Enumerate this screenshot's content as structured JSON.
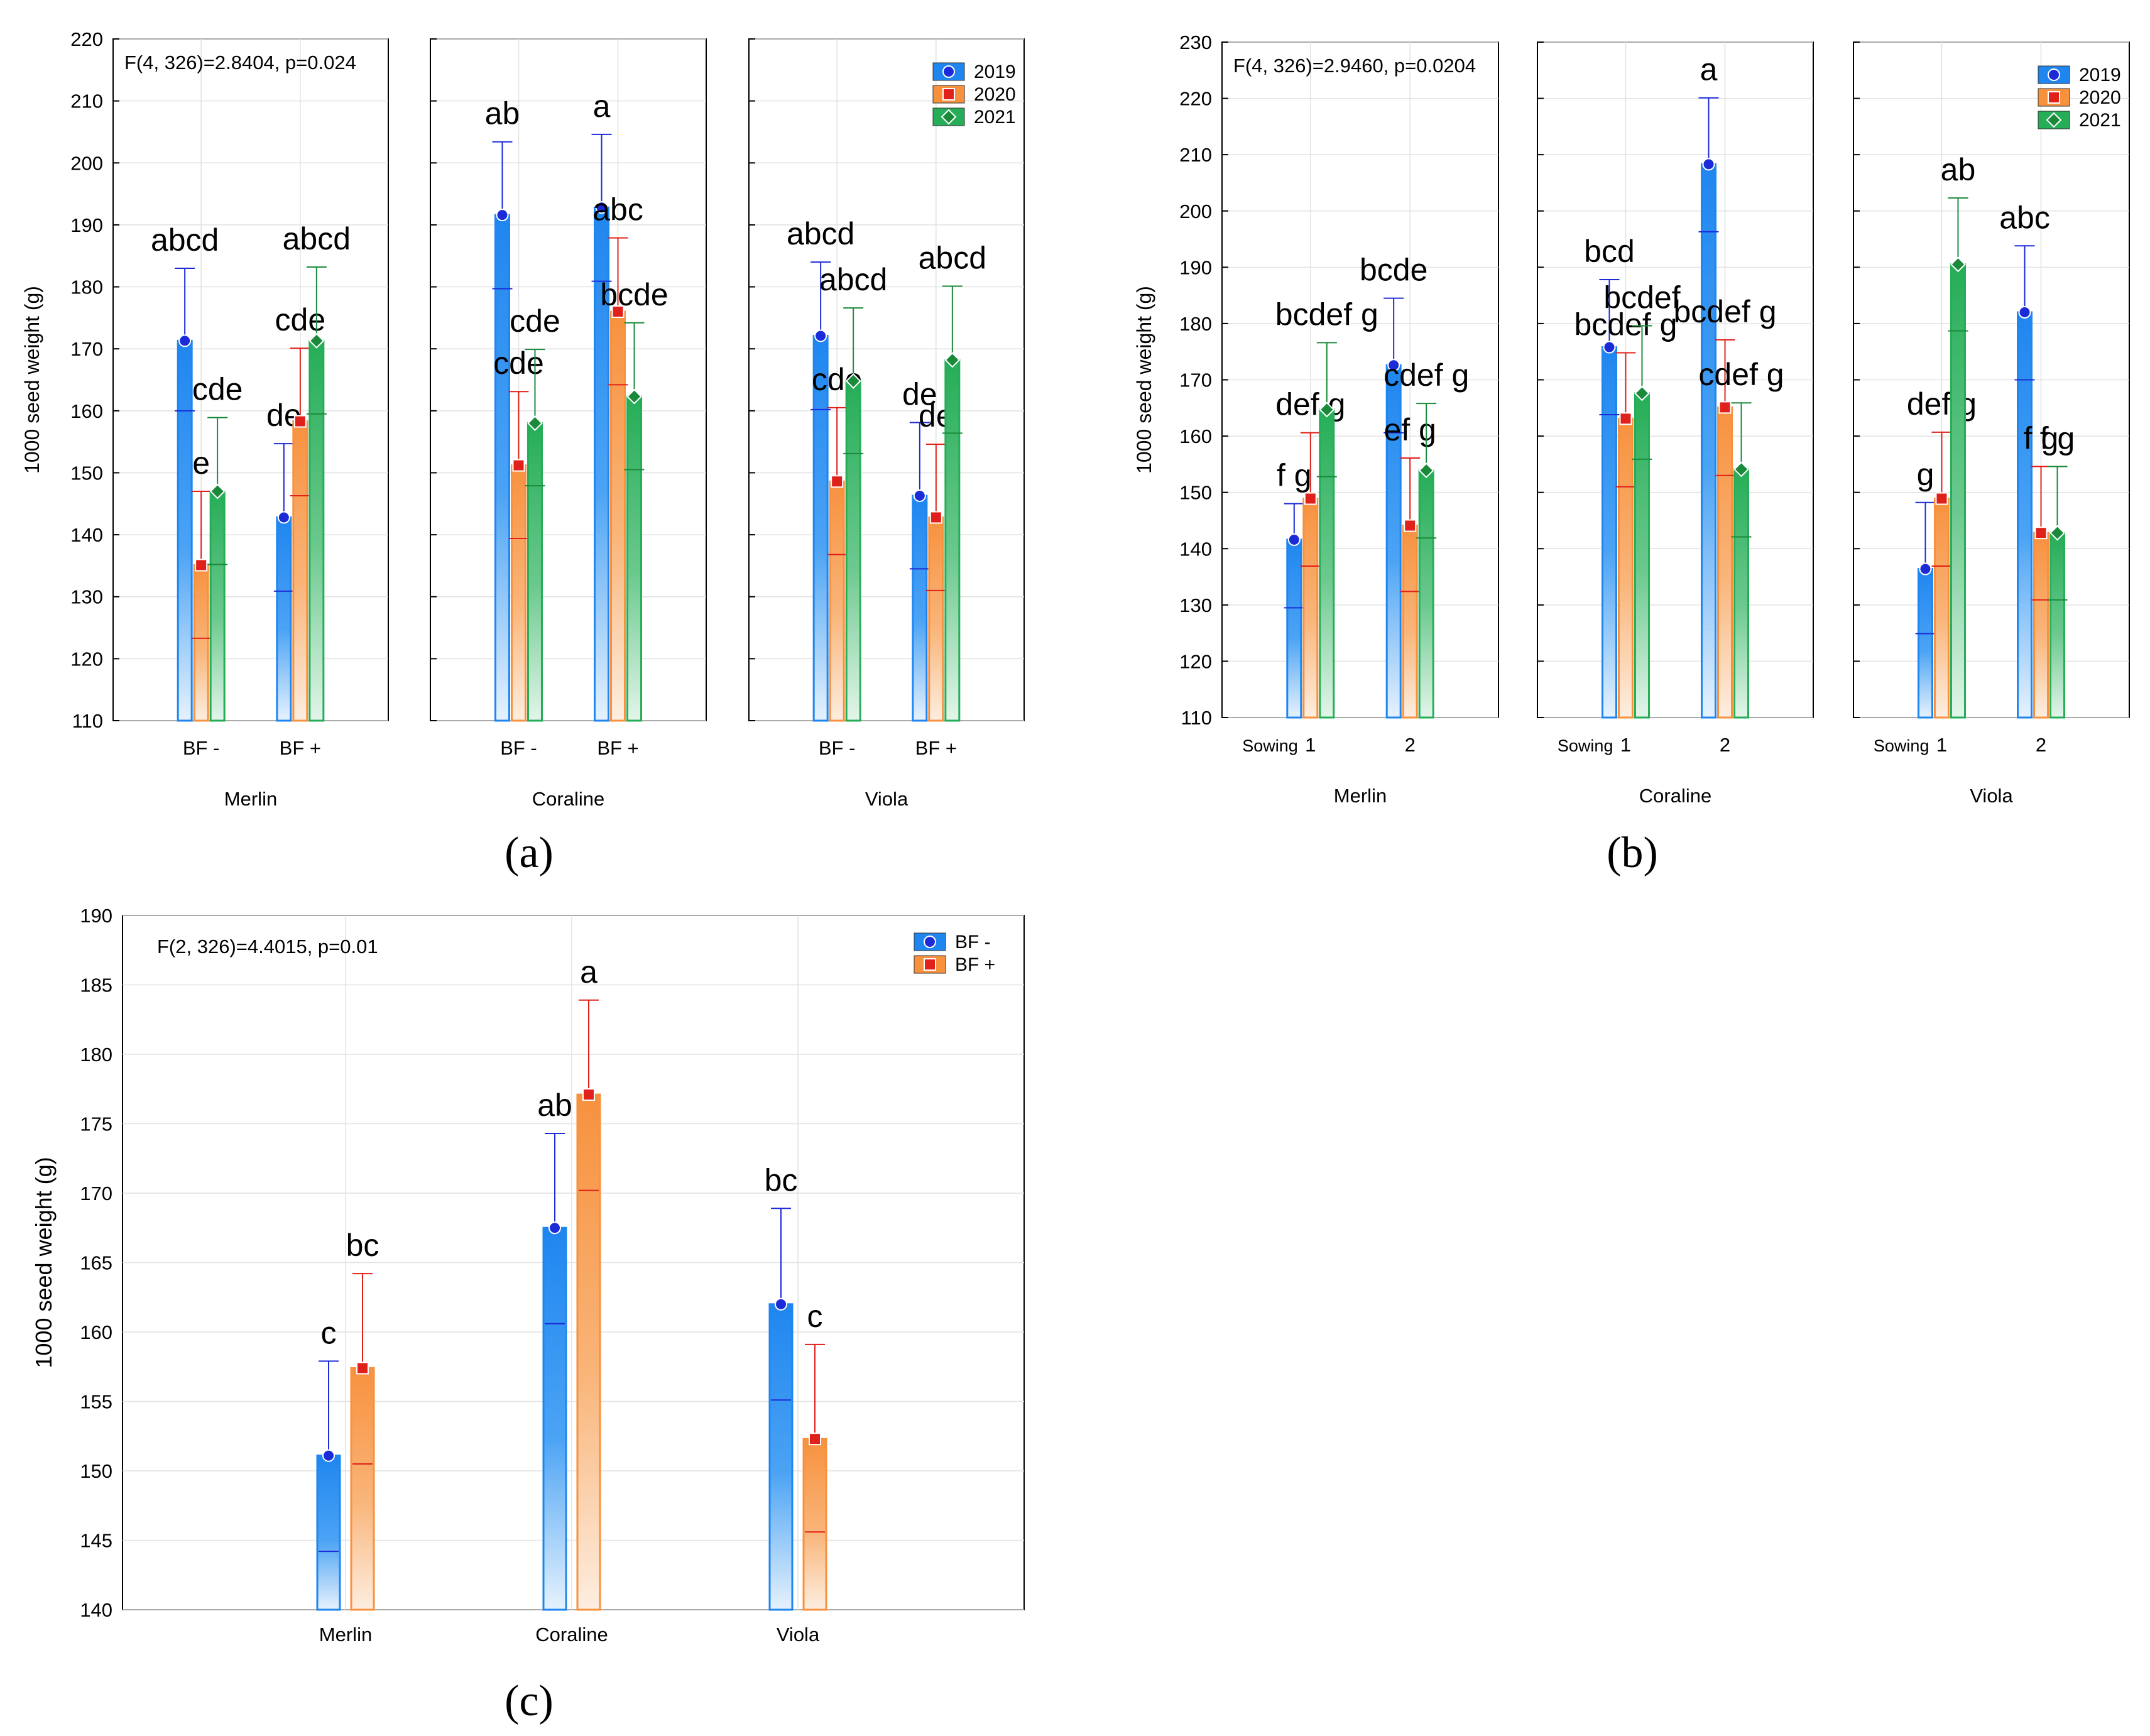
{
  "panel_labels": {
    "a": "(a)",
    "b": "(b)",
    "c": "(c)"
  },
  "colors": {
    "y2019": "#1f86f0",
    "y2020": "#f7913e",
    "y2021": "#25ad57",
    "bfminus": "#1f86f0",
    "bfplus": "#f7913e",
    "err2019": "#1c2bd8",
    "err2020": "#e0201a",
    "err2021": "#1a8a3a"
  },
  "chart_data": [
    {
      "id": "a",
      "type": "bar",
      "ylabel": "1000 seed weight (g)",
      "ylim": [
        110,
        220
      ],
      "yticks": [
        110,
        120,
        130,
        140,
        150,
        160,
        170,
        180,
        190,
        200,
        210,
        220
      ],
      "stat_text": "F(4, 326)=2.8404, p=0.024",
      "legend": [
        "2019",
        "2020",
        "2021"
      ],
      "categories": [
        "BF -",
        "BF +"
      ],
      "subplots": [
        {
          "group": "Merlin",
          "series": [
            {
              "name": "2019",
              "values": [
                171.3,
                142.8
              ],
              "se": [
                160.0,
                130.9
              ],
              "ci": [
                183.0,
                154.7
              ],
              "letters": [
                "abcd",
                "de"
              ]
            },
            {
              "name": "2020",
              "values": [
                135.1,
                158.3
              ],
              "se": [
                123.3,
                146.3
              ],
              "ci": [
                147.0,
                170.1
              ],
              "letters": [
                "e",
                "cde"
              ]
            },
            {
              "name": "2021",
              "values": [
                147.0,
                171.3
              ],
              "se": [
                135.2,
                159.5
              ],
              "ci": [
                158.9,
                183.2
              ],
              "letters": [
                "cde",
                "abcd"
              ]
            }
          ]
        },
        {
          "group": "Coraline",
          "series": [
            {
              "name": "2019",
              "values": [
                191.6,
                192.8
              ],
              "se": [
                179.7,
                180.9
              ],
              "ci": [
                203.4,
                204.6
              ],
              "letters": [
                "ab",
                "a"
              ]
            },
            {
              "name": "2020",
              "values": [
                151.2,
                176.0
              ],
              "se": [
                139.4,
                164.2
              ],
              "ci": [
                163.1,
                187.9
              ],
              "letters": [
                "cde",
                "abc"
              ]
            },
            {
              "name": "2021",
              "values": [
                158.0,
                162.3
              ],
              "se": [
                147.9,
                150.5
              ],
              "ci": [
                169.9,
                174.2
              ],
              "letters": [
                "cde",
                "bcde"
              ]
            }
          ]
        },
        {
          "group": "Viola",
          "series": [
            {
              "name": "2019",
              "values": [
                172.1,
                146.3
              ],
              "se": [
                160.2,
                134.5
              ],
              "ci": [
                184.0,
                158.1
              ],
              "letters": [
                "abcd",
                "de"
              ]
            },
            {
              "name": "2020",
              "values": [
                148.6,
                142.8
              ],
              "se": [
                136.8,
                131.0
              ],
              "ci": [
                160.5,
                154.6
              ],
              "letters": [
                "cde",
                "de"
              ]
            },
            {
              "name": "2021",
              "values": [
                164.8,
                168.2
              ],
              "se": [
                153.1,
                156.4
              ],
              "ci": [
                176.6,
                180.1
              ],
              "letters": [
                "abcd",
                "abcd"
              ]
            }
          ]
        }
      ]
    },
    {
      "id": "b",
      "type": "bar",
      "ylabel": "1000 seed weight (g)",
      "ylim": [
        110,
        230
      ],
      "yticks": [
        110,
        120,
        130,
        140,
        150,
        160,
        170,
        180,
        190,
        200,
        210,
        220,
        230
      ],
      "stat_text": "F(4, 326)=2.9460, p=0.0204",
      "legend": [
        "2019",
        "2020",
        "2021"
      ],
      "x_prefix": "Sowing",
      "categories": [
        "1",
        "2"
      ],
      "subplots": [
        {
          "group": "Merlin",
          "series": [
            {
              "name": "2019",
              "values": [
                141.6,
                172.6
              ],
              "se": [
                129.5,
                160.6
              ],
              "ci": [
                148.0,
                184.5
              ],
              "letters": [
                "f g",
                "bcde"
              ]
            },
            {
              "name": "2020",
              "values": [
                148.9,
                144.1
              ],
              "se": [
                136.9,
                132.4
              ],
              "ci": [
                160.6,
                156.1
              ],
              "letters": [
                "def g",
                "ef g"
              ]
            },
            {
              "name": "2021",
              "values": [
                164.7,
                153.9
              ],
              "se": [
                152.8,
                141.9
              ],
              "ci": [
                176.6,
                165.8
              ],
              "letters": [
                "bcdef g",
                "cdef g"
              ]
            }
          ]
        },
        {
          "group": "Coraline",
          "series": [
            {
              "name": "2019",
              "values": [
                175.8,
                208.3
              ],
              "se": [
                163.8,
                196.3
              ],
              "ci": [
                187.8,
                220.1
              ],
              "letters": [
                "bcd",
                "a"
              ]
            },
            {
              "name": "2020",
              "values": [
                163.1,
                165.1
              ],
              "se": [
                151.0,
                153.0
              ],
              "ci": [
                174.8,
                177.1
              ],
              "letters": [
                "bcdef g",
                "bcdef g"
              ]
            },
            {
              "name": "2021",
              "values": [
                167.6,
                154.1
              ],
              "se": [
                155.9,
                142.1
              ],
              "ci": [
                179.6,
                165.9
              ],
              "letters": [
                "bcdef",
                "cdef g"
              ]
            }
          ]
        },
        {
          "group": "Viola",
          "series": [
            {
              "name": "2019",
              "values": [
                136.4,
                182.0
              ],
              "se": [
                124.9,
                170.0
              ],
              "ci": [
                148.2,
                193.8
              ],
              "letters": [
                "g",
                "abc"
              ]
            },
            {
              "name": "2020",
              "values": [
                148.9,
                142.8
              ],
              "se": [
                136.9,
                130.9
              ],
              "ci": [
                160.7,
                154.6
              ],
              "letters": [
                "def g",
                "f g"
              ]
            },
            {
              "name": "2021",
              "values": [
                190.5,
                142.8
              ],
              "se": [
                178.7,
                130.9
              ],
              "ci": [
                202.3,
                154.6
              ],
              "letters": [
                "ab",
                "f g"
              ]
            }
          ]
        }
      ]
    },
    {
      "id": "c",
      "type": "bar",
      "ylabel": "1000 seed weight (g)",
      "ylim": [
        140,
        190
      ],
      "yticks": [
        140,
        145,
        150,
        155,
        160,
        165,
        170,
        175,
        180,
        185,
        190
      ],
      "stat_text": "F(2, 326)=4.4015, p=0.01",
      "legend": [
        "BF -",
        "BF +"
      ],
      "categories": [
        "Merlin",
        "Coraline",
        "Viola"
      ],
      "series": [
        {
          "name": "BF -",
          "values": [
            151.1,
            167.5,
            162.0
          ],
          "se": [
            144.2,
            160.6,
            155.1
          ],
          "ci": [
            157.9,
            174.3,
            168.9
          ],
          "letters": [
            "c",
            "ab",
            "bc"
          ]
        },
        {
          "name": "BF +",
          "values": [
            157.4,
            177.1,
            152.3
          ],
          "se": [
            150.5,
            170.2,
            145.6
          ],
          "ci": [
            164.2,
            183.9,
            159.1
          ],
          "letters": [
            "bc",
            "a",
            "c"
          ]
        }
      ]
    }
  ]
}
